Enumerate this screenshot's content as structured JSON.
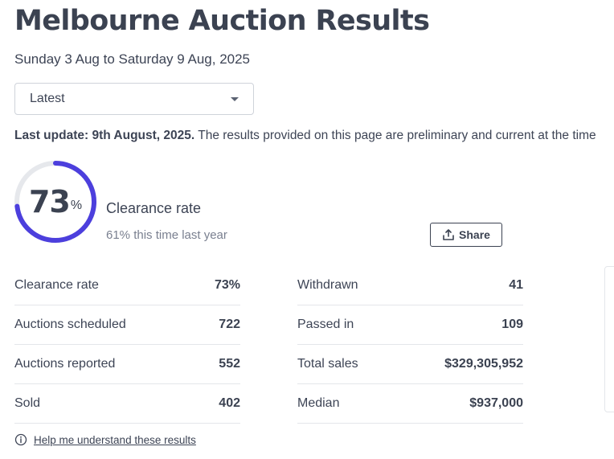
{
  "header": {
    "title": "Melbourne Auction Results",
    "date_range": "Sunday 3 Aug to Saturday 9 Aug, 2025"
  },
  "period_select": {
    "value": "Latest",
    "icon": "chevron-down-icon"
  },
  "update": {
    "bold": "Last update: 9th August, 2025.",
    "text": " The results provided on this page are preliminary and current at the time"
  },
  "clearance": {
    "value": "73",
    "unit": "%",
    "rate_fraction": 0.73,
    "label": "Clearance rate",
    "last_year": "61% this time last year",
    "ring_color": "#4c3fdd",
    "track_color": "#e6e8ec"
  },
  "share": {
    "label": "Share",
    "icon": "share-upload-icon"
  },
  "stats": {
    "left": [
      {
        "label": "Clearance rate",
        "value": "73%"
      },
      {
        "label": "Auctions scheduled",
        "value": "722"
      },
      {
        "label": "Auctions reported",
        "value": "552"
      },
      {
        "label": "Sold",
        "value": "402"
      }
    ],
    "right": [
      {
        "label": "Withdrawn",
        "value": "41"
      },
      {
        "label": "Passed in",
        "value": "109"
      },
      {
        "label": "Total sales",
        "value": "$329,305,952"
      },
      {
        "label": "Median",
        "value": "$937,000"
      }
    ]
  },
  "help": {
    "label": "Help me understand these results",
    "icon": "info-circle-icon"
  }
}
